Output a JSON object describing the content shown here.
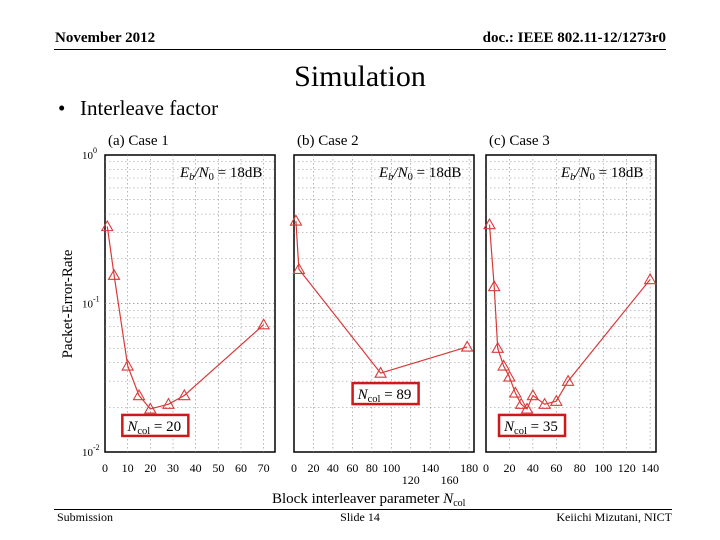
{
  "header": {
    "date": "November 2012",
    "doc_id": "doc.: IEEE 802.11-12/1273r0"
  },
  "title": "Simulation",
  "bullets": [
    "Interleave factor"
  ],
  "footer": {
    "left": "Submission",
    "center": "Slide 14",
    "right": "Keiichi Mizutani, NICT"
  },
  "chart_data": {
    "type": "line",
    "ylabel": "Packet-Error-Rate",
    "xlabel": "Block interleaver parameter Ncol",
    "y_scale": "log",
    "ylim": [
      0.01,
      1
    ],
    "y_ticks": [
      "10^0",
      "10^-1",
      "10^-2"
    ],
    "grid": true,
    "series_color": "#d83a3a",
    "marker": "triangle",
    "panels": [
      {
        "label": "(a) Case 1",
        "annotation": "Eb/N0 = 18dB",
        "callout": "Ncol = 20",
        "xlim": [
          0,
          75
        ],
        "x_ticks": [
          0,
          10,
          20,
          30,
          40,
          50,
          60,
          70
        ],
        "x": [
          1,
          4,
          10,
          15,
          20,
          28,
          35,
          70
        ],
        "y": [
          0.33,
          0.155,
          0.038,
          0.024,
          0.0195,
          0.021,
          0.024,
          0.072
        ]
      },
      {
        "label": "(b) Case 2",
        "annotation": "Eb/N0 = 18dB",
        "callout": "Ncol = 89",
        "xlim": [
          0,
          185
        ],
        "x_ticks": [
          0,
          20,
          40,
          60,
          80,
          100,
          120,
          140,
          160,
          180
        ],
        "x": [
          2,
          5,
          89,
          178
        ],
        "y": [
          0.36,
          0.17,
          0.034,
          0.051
        ]
      },
      {
        "label": "(c) Case 3",
        "annotation": "Eb/N0 = 18dB",
        "callout": "Ncol = 35",
        "xlim": [
          0,
          145
        ],
        "x_ticks": [
          0,
          20,
          40,
          60,
          80,
          100,
          120,
          140
        ],
        "x": [
          3,
          7,
          10,
          15,
          20,
          25,
          30,
          35,
          40,
          50,
          60,
          70,
          140
        ],
        "y": [
          0.34,
          0.13,
          0.05,
          0.038,
          0.032,
          0.025,
          0.021,
          0.0195,
          0.024,
          0.021,
          0.022,
          0.03,
          0.145
        ]
      }
    ]
  }
}
